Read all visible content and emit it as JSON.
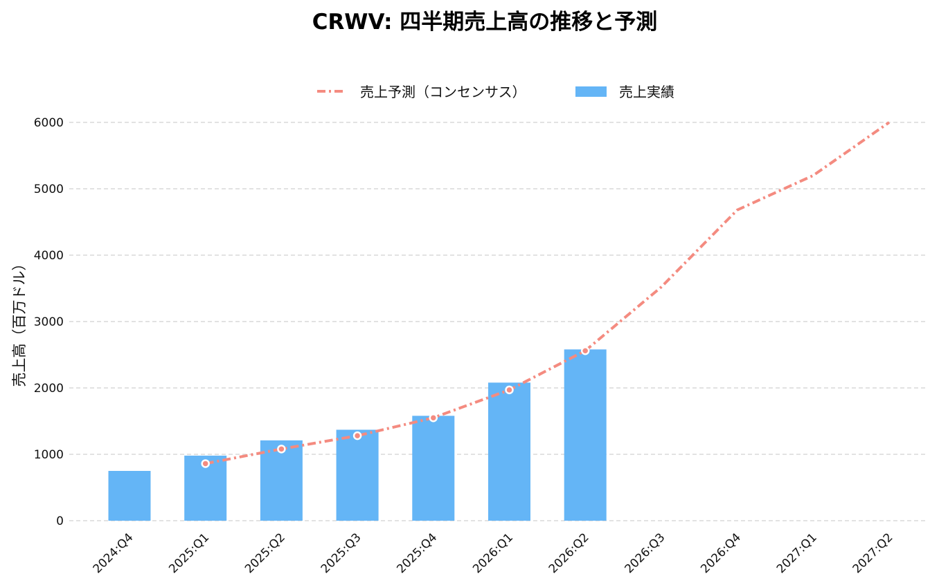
{
  "chart_data": {
    "type": "bar",
    "title": "CRWV: 四半期売上高の推移と予測",
    "xlabel": "",
    "ylabel": "売上高（百万ドル）",
    "categories": [
      "2024:Q4",
      "2025:Q1",
      "2025:Q2",
      "2025:Q3",
      "2025:Q4",
      "2026:Q1",
      "2026:Q2",
      "2026:Q3",
      "2026:Q4",
      "2027:Q1",
      "2027:Q2"
    ],
    "ylim": [
      0,
      6000
    ],
    "yticks": [
      0,
      1000,
      2000,
      3000,
      4000,
      5000,
      6000
    ],
    "grid": true,
    "legend_position": "top",
    "series": [
      {
        "name": "売上予測（コンセンサス）",
        "kind": "line",
        "style": "dash-dot",
        "color": "#f48b80",
        "values": [
          null,
          860,
          1080,
          1280,
          1550,
          1970,
          2560,
          3520,
          4680,
          5200,
          6000
        ],
        "markers": [
          false,
          true,
          true,
          true,
          true,
          true,
          true,
          false,
          false,
          false,
          false
        ]
      },
      {
        "name": "売上実績",
        "kind": "bar",
        "color": "#64b5f6",
        "values": [
          750,
          980,
          1210,
          1370,
          1580,
          2080,
          2580,
          null,
          null,
          null,
          null
        ]
      }
    ]
  }
}
